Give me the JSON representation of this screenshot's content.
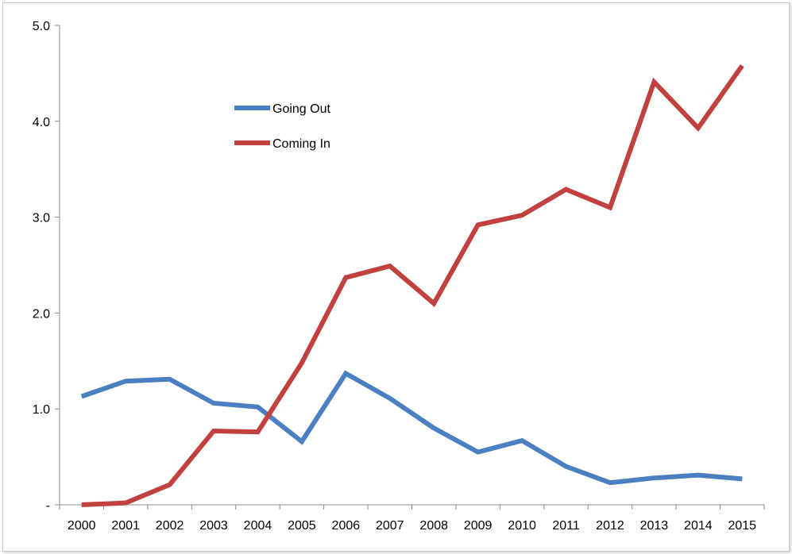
{
  "chart_data": {
    "type": "line",
    "x": [
      "2000",
      "2001",
      "2002",
      "2003",
      "2004",
      "2005",
      "2006",
      "2007",
      "2008",
      "2009",
      "2010",
      "2011",
      "2012",
      "2013",
      "2014",
      "2015"
    ],
    "y_ticks": [
      "-",
      "1.0",
      "2.0",
      "3.0",
      "4.0",
      "5.0"
    ],
    "ylim": [
      0,
      5
    ],
    "grid": false,
    "legend_position": "upper-left-inside",
    "series": [
      {
        "name": "Going Out",
        "color": "#4a7fc1",
        "values": [
          1.13,
          1.29,
          1.31,
          1.06,
          1.02,
          0.66,
          1.37,
          1.11,
          0.8,
          0.55,
          0.67,
          0.4,
          0.23,
          0.28,
          0.31,
          0.27
        ]
      },
      {
        "name": "Coming In",
        "color": "#c0413e",
        "values": [
          0.0,
          0.02,
          0.21,
          0.77,
          0.76,
          1.48,
          2.37,
          2.49,
          2.1,
          2.92,
          3.02,
          3.29,
          3.1,
          4.41,
          3.93,
          4.58
        ]
      }
    ]
  }
}
